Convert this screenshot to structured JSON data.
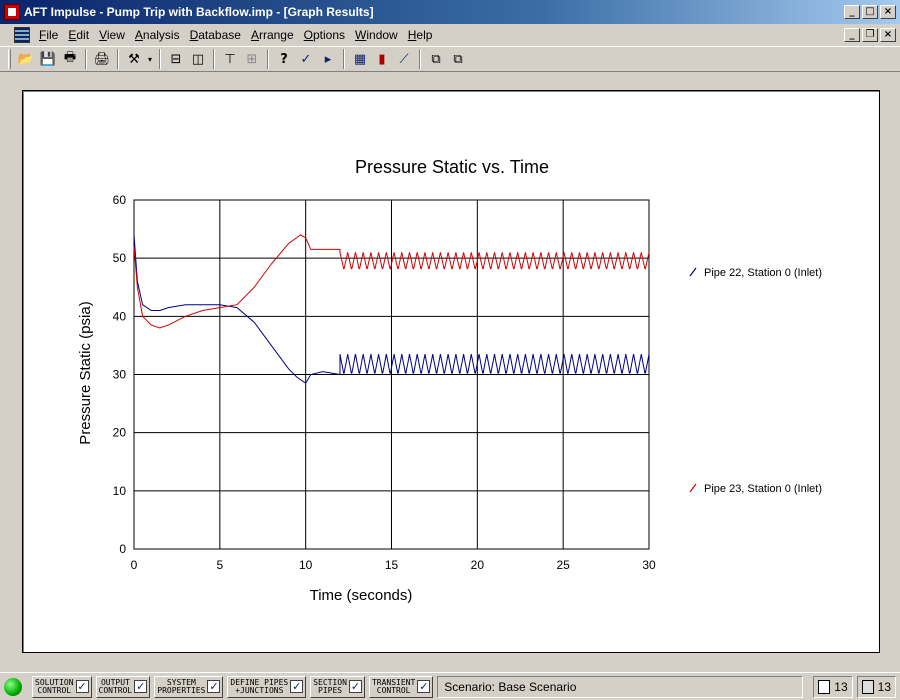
{
  "window": {
    "title": "AFT Impulse - Pump Trip with Backflow.imp - [Graph Results]",
    "controls": [
      "_",
      "□",
      "×"
    ],
    "mdi_controls": [
      "_",
      "❐",
      "×"
    ]
  },
  "menu": {
    "items": [
      {
        "u": "F",
        "rest": "ile"
      },
      {
        "u": "E",
        "rest": "dit"
      },
      {
        "u": "V",
        "rest": "iew"
      },
      {
        "u": "A",
        "rest": "nalysis"
      },
      {
        "u": "D",
        "rest": "atabase"
      },
      {
        "u": "A",
        "rest": "rrange",
        "pre": ""
      },
      {
        "u": "O",
        "rest": "ptions"
      },
      {
        "u": "W",
        "rest": "indow"
      },
      {
        "u": "H",
        "rest": "elp"
      }
    ]
  },
  "toolbar": {
    "icons": [
      "open-icon",
      "save-icon",
      "print-icon",
      "print-preview-icon",
      "tools-icon",
      "layout-horizontal-icon",
      "layout-vertical-icon",
      "tree-icon",
      "arrange-icon",
      "help-icon",
      "check-icon",
      "run-icon",
      "graph-icon",
      "bar-chart-icon",
      "line-chart-icon",
      "copy-icon",
      "copy-data-icon"
    ]
  },
  "chart_data": {
    "type": "line",
    "title": "Pressure Static vs. Time",
    "xlabel": "Time (seconds)",
    "ylabel": "Pressure Static (psia)",
    "xlim": [
      0,
      30
    ],
    "ylim": [
      0,
      60
    ],
    "xticks": [
      0,
      5,
      10,
      15,
      20,
      25,
      30
    ],
    "yticks": [
      0,
      10,
      20,
      30,
      40,
      50,
      60
    ],
    "grid": true,
    "legend_position": "right",
    "series": [
      {
        "name": "Pipe 22, Station 0 (Inlet)",
        "color": "#000080",
        "x": [
          0,
          0.2,
          0.5,
          1,
          1.5,
          2,
          3,
          4,
          5,
          6,
          7,
          8,
          9,
          9.5,
          10,
          10.3,
          11,
          12
        ],
        "y": [
          54,
          46,
          42,
          41,
          41,
          41.5,
          42,
          42,
          42,
          41.5,
          39,
          35,
          31,
          29.5,
          28.5,
          30,
          30.5,
          30
        ],
        "oscillation": {
          "start": 12,
          "end": 30,
          "min": 30,
          "max": 33.5,
          "period": 0.45
        }
      },
      {
        "name": "Pipe 23, Station 0 (Inlet)",
        "color": "#d00000",
        "x": [
          0,
          0.2,
          0.5,
          1,
          1.5,
          2,
          3,
          4,
          5,
          6,
          7,
          8,
          9,
          9.7,
          10,
          10.3,
          11,
          12
        ],
        "y": [
          52,
          45,
          40,
          38.5,
          38,
          38.5,
          40,
          41,
          41.5,
          42,
          45,
          49,
          52.5,
          54,
          53.5,
          51.5,
          51.5,
          51.5
        ],
        "oscillation": {
          "start": 12,
          "end": 30,
          "min": 48,
          "max": 51,
          "period": 0.45
        }
      }
    ]
  },
  "statusbar": {
    "buttons": [
      {
        "label": "SOLUTION\nCONTROL",
        "checked": "✓"
      },
      {
        "label": "OUTPUT\nCONTROL",
        "checked": "✓"
      },
      {
        "label": "SYSTEM\nPROPERTIES",
        "checked": "✓"
      },
      {
        "label": "DEFINE PIPES\n+JUNCTIONS",
        "checked": "✓"
      },
      {
        "label": "SECTION\nPIPES",
        "checked": "✓"
      },
      {
        "label": "TRANSIENT\nCONTROL",
        "checked": "✓"
      }
    ],
    "scenario": "Scenario: Base Scenario",
    "pipe_count": "13",
    "junction_count": "13"
  }
}
